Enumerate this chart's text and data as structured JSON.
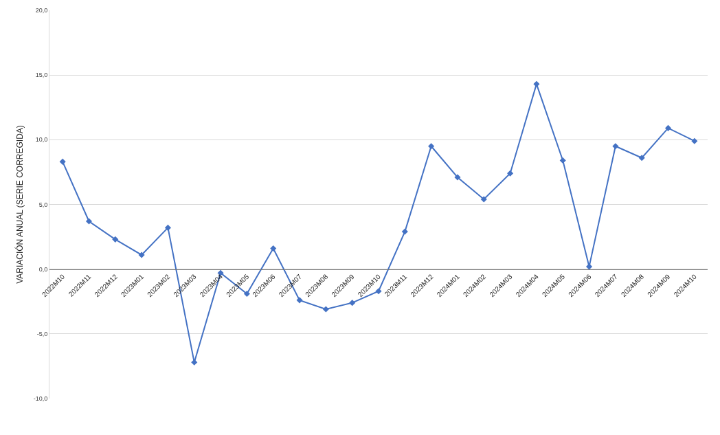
{
  "chart_data": {
    "type": "line",
    "ylabel": "VARIACIÓN ANUAL (SERIE CORREGIDA)",
    "categories": [
      "2022M10",
      "2022M11",
      "2022M12",
      "2023M01",
      "2023M02",
      "2023M03",
      "2023M04",
      "2023M05",
      "2023M06",
      "2023M07",
      "2023M08",
      "2023M09",
      "2023M10",
      "2023M11",
      "2023M12",
      "2024M01",
      "2024M02",
      "2024M03",
      "2024M04",
      "2024M05",
      "2024M06",
      "2024M07",
      "2024M08",
      "2024M09",
      "2024M10"
    ],
    "series": [
      {
        "color": "#4472c4",
        "values": [
          8.3,
          3.7,
          2.3,
          1.1,
          3.2,
          -7.2,
          -0.3,
          -1.9,
          1.6,
          -2.4,
          -3.1,
          -2.6,
          -1.7,
          2.9,
          9.5,
          7.1,
          5.4,
          7.4,
          14.3,
          8.4,
          0.2,
          9.5,
          8.6,
          10.9,
          9.9
        ]
      }
    ],
    "ylim": [
      -10,
      20
    ],
    "yticks": [
      {
        "value": -10,
        "label": "-10,0"
      },
      {
        "value": -5,
        "label": "-5,0"
      },
      {
        "value": 0,
        "label": "0,0"
      },
      {
        "value": 5,
        "label": "5,0"
      },
      {
        "value": 10,
        "label": "10,0"
      },
      {
        "value": 15,
        "label": "15,0"
      },
      {
        "value": 20,
        "label": "20,0"
      }
    ],
    "grid": "y",
    "marker": "diamond",
    "line_style": "solid",
    "legend": false
  }
}
